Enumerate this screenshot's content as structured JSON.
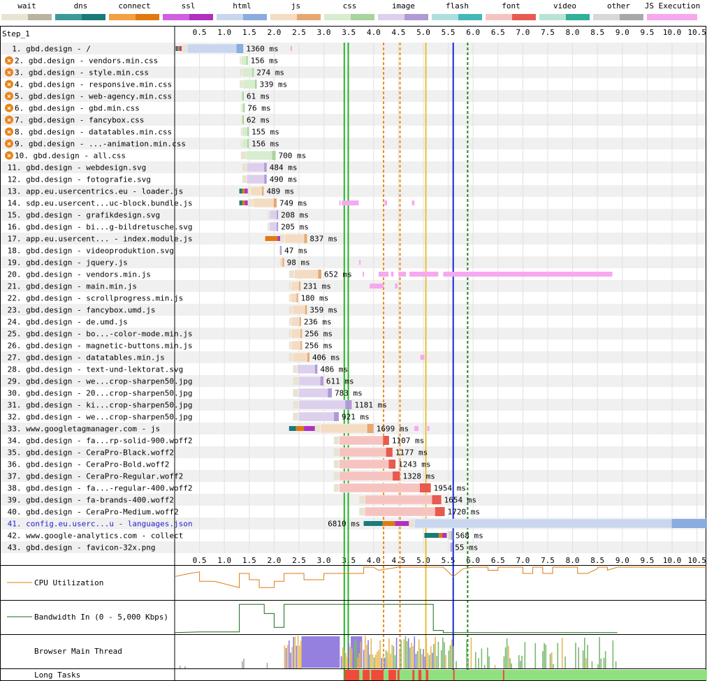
{
  "legend": [
    {
      "label": "wait",
      "colors": [
        "#e8e4d2",
        "#b8b4a0"
      ]
    },
    {
      "label": "dns",
      "colors": [
        "#3a9a9a",
        "#1a7a7a"
      ]
    },
    {
      "label": "connect",
      "colors": [
        "#f2a040",
        "#e07a10"
      ]
    },
    {
      "label": "ssl",
      "colors": [
        "#d060e0",
        "#b030c0"
      ]
    },
    {
      "label": "html",
      "colors": [
        "#c8d6ee",
        "#8aacdf"
      ]
    },
    {
      "label": "js",
      "colors": [
        "#f4dcc4",
        "#e6a870"
      ]
    },
    {
      "label": "css",
      "colors": [
        "#d8ecd0",
        "#a8d49a"
      ]
    },
    {
      "label": "image",
      "colors": [
        "#dcd0ec",
        "#b09ad6"
      ]
    },
    {
      "label": "flash",
      "colors": [
        "#b0dede",
        "#44b8b8"
      ]
    },
    {
      "label": "font",
      "colors": [
        "#f6c4c0",
        "#e85a50"
      ]
    },
    {
      "label": "video",
      "colors": [
        "#b8e4d4",
        "#30b098"
      ]
    },
    {
      "label": "other",
      "colors": [
        "#d8d8d8",
        "#a8a8a8"
      ]
    },
    {
      "label": "JS Execution",
      "colors": [
        "#f6a8f0",
        "#f6a8f0"
      ]
    }
  ],
  "chart_data": {
    "type": "table",
    "title": "Step_1",
    "x_axis_ticks": [
      "0.5",
      "1.0",
      "1.5",
      "2.0",
      "2.5",
      "3.0",
      "3.5",
      "4.0",
      "4.5",
      "5.0",
      "5.5",
      "6.0",
      "6.5",
      "7.0",
      "7.5",
      "8.0",
      "8.5",
      "9.0",
      "9.5",
      "10.0",
      "10.5"
    ],
    "xlim": [
      0,
      10.7
    ],
    "markers": [
      {
        "t": 3.41,
        "color": "#28b428",
        "style": "solid"
      },
      {
        "t": 3.49,
        "color": "#28b428",
        "style": "solid"
      },
      {
        "t": 4.2,
        "color": "#f08c14",
        "style": "dashed"
      },
      {
        "t": 4.53,
        "color": "#f08c14",
        "style": "dashed"
      },
      {
        "t": 5.05,
        "color": "#e8c030",
        "style": "solid"
      },
      {
        "t": 5.6,
        "color": "#1428d8",
        "style": "solid"
      },
      {
        "t": 5.89,
        "color": "#208c20",
        "style": "dashed"
      }
    ],
    "requests": [
      {
        "n": "1.",
        "label": "gbd.design - /",
        "start": 0.02,
        "end": 1.38,
        "type": "html",
        "warn": false,
        "link": false,
        "ms": "1360 ms",
        "pre": [
          [
            "dns",
            0.02,
            0.06
          ],
          [
            "connect",
            0.06,
            0.1
          ],
          [
            "ssl",
            0.1,
            0.14
          ]
        ],
        "js": [
          [
            2.33,
            2.36
          ]
        ]
      },
      {
        "n": "2.",
        "label": "gbd.design - vendors.min.css",
        "start": 1.31,
        "end": 1.47,
        "type": "css",
        "warn": true,
        "link": false,
        "ms": "156 ms",
        "pre": [],
        "js": []
      },
      {
        "n": "3.",
        "label": "gbd.design - style.min.css",
        "start": 1.31,
        "end": 1.59,
        "type": "css",
        "warn": true,
        "link": false,
        "ms": "274 ms",
        "pre": [],
        "js": []
      },
      {
        "n": "4.",
        "label": "gbd.design - responsive.min.css",
        "start": 1.31,
        "end": 1.65,
        "type": "css",
        "warn": true,
        "link": false,
        "ms": "339 ms",
        "pre": [],
        "js": []
      },
      {
        "n": "5.",
        "label": "gbd.design - web-agency.min.css",
        "start": 1.33,
        "end": 1.39,
        "type": "css",
        "warn": true,
        "link": false,
        "ms": "61 ms",
        "pre": [],
        "js": []
      },
      {
        "n": "6.",
        "label": "gbd.design - gbd.min.css",
        "start": 1.33,
        "end": 1.41,
        "type": "css",
        "warn": true,
        "link": false,
        "ms": "76 ms",
        "pre": [],
        "js": []
      },
      {
        "n": "7.",
        "label": "gbd.design - fancybox.css",
        "start": 1.33,
        "end": 1.39,
        "type": "css",
        "warn": true,
        "link": false,
        "ms": "62 ms",
        "pre": [],
        "js": []
      },
      {
        "n": "8.",
        "label": "gbd.design - datatables.min.css",
        "start": 1.33,
        "end": 1.49,
        "type": "css",
        "warn": true,
        "link": false,
        "ms": "155 ms",
        "pre": [],
        "js": []
      },
      {
        "n": "9.",
        "label": "gbd.design - ...-animation.min.css",
        "start": 1.33,
        "end": 1.49,
        "type": "css",
        "warn": true,
        "link": false,
        "ms": "156 ms",
        "pre": [],
        "js": []
      },
      {
        "n": "10.",
        "label": "gbd.design - all.css",
        "start": 1.33,
        "end": 2.03,
        "type": "css",
        "warn": true,
        "link": false,
        "ms": "700 ms",
        "pre": [],
        "js": []
      },
      {
        "n": "11.",
        "label": "gbd.design - webdesign.svg",
        "start": 1.36,
        "end": 1.85,
        "type": "image",
        "warn": false,
        "link": false,
        "ms": "484 ms",
        "pre": [],
        "js": []
      },
      {
        "n": "12.",
        "label": "gbd.design - fotografie.svg",
        "start": 1.36,
        "end": 1.85,
        "type": "image",
        "warn": false,
        "link": false,
        "ms": "490 ms",
        "pre": [],
        "js": []
      },
      {
        "n": "13.",
        "label": "app.eu.usercentrics.eu - loader.js",
        "start": 1.3,
        "end": 1.79,
        "type": "js",
        "warn": false,
        "link": false,
        "ms": "489 ms",
        "pre": [
          [
            "dns",
            1.3,
            1.36
          ],
          [
            "connect",
            1.36,
            1.41
          ],
          [
            "ssl",
            1.41,
            1.47
          ]
        ],
        "js": []
      },
      {
        "n": "14.",
        "label": "sdp.eu.usercent...uc-block.bundle.js",
        "start": 1.3,
        "end": 2.05,
        "type": "js",
        "warn": false,
        "link": false,
        "ms": "749 ms",
        "pre": [
          [
            "dns",
            1.3,
            1.36
          ],
          [
            "connect",
            1.36,
            1.41
          ],
          [
            "ssl",
            1.41,
            1.47
          ]
        ],
        "js": [
          [
            3.31,
            3.33
          ],
          [
            3.36,
            3.7
          ],
          [
            4.22,
            4.27
          ],
          [
            4.77,
            4.82
          ]
        ]
      },
      {
        "n": "15.",
        "label": "gbd.design - grafikdesign.svg",
        "start": 1.87,
        "end": 2.08,
        "type": "image",
        "warn": false,
        "link": false,
        "ms": "208 ms",
        "pre": [],
        "js": []
      },
      {
        "n": "16.",
        "label": "gbd.design - bi...g-bildretusche.svg",
        "start": 1.87,
        "end": 2.08,
        "type": "image",
        "warn": false,
        "link": false,
        "ms": "205 ms",
        "pre": [],
        "js": []
      },
      {
        "n": "17.",
        "label": "app.eu.usercent... - index.module.js",
        "start": 1.82,
        "end": 2.66,
        "type": "js",
        "warn": false,
        "link": false,
        "ms": "837 ms",
        "pre": [
          [
            "connect",
            1.82,
            2.07
          ],
          [
            "ssl",
            2.07,
            2.12
          ]
        ],
        "js": []
      },
      {
        "n": "18.",
        "label": "gbd.design - videoproduktion.svg",
        "start": 2.1,
        "end": 2.15,
        "type": "image",
        "warn": false,
        "link": false,
        "ms": "47 ms",
        "pre": [],
        "js": []
      },
      {
        "n": "19.",
        "label": "gbd.design - jquery.js",
        "start": 2.1,
        "end": 2.2,
        "type": "js",
        "warn": false,
        "link": false,
        "ms": "98 ms",
        "pre": [],
        "js": [
          [
            3.71,
            3.73
          ]
        ]
      },
      {
        "n": "20.",
        "label": "gbd.design - vendors.min.js",
        "start": 2.3,
        "end": 2.95,
        "type": "js",
        "warn": false,
        "link": false,
        "ms": "652 ms",
        "pre": [],
        "js": [
          [
            3.78,
            3.8
          ],
          [
            4.1,
            4.3
          ],
          [
            4.35,
            4.4
          ],
          [
            4.5,
            4.65
          ],
          [
            4.72,
            5.3
          ],
          [
            5.4,
            6.5
          ],
          [
            6.5,
            8.8
          ]
        ]
      },
      {
        "n": "21.",
        "label": "gbd.design - main.min.js",
        "start": 2.3,
        "end": 2.53,
        "type": "js",
        "warn": false,
        "link": false,
        "ms": "231 ms",
        "pre": [],
        "js": [
          [
            3.92,
            4.2
          ],
          [
            4.43,
            4.48
          ]
        ]
      },
      {
        "n": "22.",
        "label": "gbd.design - scrollprogress.min.js",
        "start": 2.3,
        "end": 2.48,
        "type": "js",
        "warn": false,
        "link": false,
        "ms": "180 ms",
        "pre": [],
        "js": []
      },
      {
        "n": "23.",
        "label": "gbd.design - fancybox.umd.js",
        "start": 2.3,
        "end": 2.66,
        "type": "js",
        "warn": false,
        "link": false,
        "ms": "359 ms",
        "pre": [],
        "js": []
      },
      {
        "n": "24.",
        "label": "gbd.design - de.umd.js",
        "start": 2.3,
        "end": 2.54,
        "type": "js",
        "warn": false,
        "link": false,
        "ms": "236 ms",
        "pre": [],
        "js": []
      },
      {
        "n": "25.",
        "label": "gbd.design - bo...-color-mode.min.js",
        "start": 2.3,
        "end": 2.56,
        "type": "js",
        "warn": false,
        "link": false,
        "ms": "256 ms",
        "pre": [],
        "js": []
      },
      {
        "n": "26.",
        "label": "gbd.design - magnetic-buttons.min.js",
        "start": 2.3,
        "end": 2.56,
        "type": "js",
        "warn": false,
        "link": false,
        "ms": "256 ms",
        "pre": [],
        "js": []
      },
      {
        "n": "27.",
        "label": "gbd.design - datatables.min.js",
        "start": 2.3,
        "end": 2.71,
        "type": "js",
        "warn": false,
        "link": false,
        "ms": "406 ms",
        "pre": [],
        "js": [
          [
            4.94,
            5.02
          ]
        ]
      },
      {
        "n": "28.",
        "label": "gbd.design - text-und-lektorat.svg",
        "start": 2.38,
        "end": 2.87,
        "type": "image",
        "warn": false,
        "link": false,
        "ms": "486 ms",
        "pre": [],
        "js": []
      },
      {
        "n": "29.",
        "label": "gbd.design - we...crop-sharpen50.jpg",
        "start": 2.38,
        "end": 2.99,
        "type": "image",
        "warn": false,
        "link": false,
        "ms": "611 ms",
        "pre": [],
        "js": []
      },
      {
        "n": "30.",
        "label": "gbd.design - 20...crop-sharpen50.jpg",
        "start": 2.38,
        "end": 3.16,
        "type": "image",
        "warn": false,
        "link": false,
        "ms": "783 ms",
        "pre": [],
        "js": []
      },
      {
        "n": "31.",
        "label": "gbd.design - ki...crop-sharpen50.jpg",
        "start": 2.38,
        "end": 3.56,
        "type": "image",
        "warn": false,
        "link": false,
        "ms": "1181 ms",
        "pre": [],
        "js": []
      },
      {
        "n": "32.",
        "label": "gbd.design - we...crop-sharpen50.jpg",
        "start": 2.38,
        "end": 3.3,
        "type": "image",
        "warn": false,
        "link": false,
        "ms": "921 ms",
        "pre": [],
        "js": []
      },
      {
        "n": "33.",
        "label": "www.googletagmanager.com - js",
        "start": 2.3,
        "end": 4.0,
        "type": "js",
        "warn": false,
        "link": false,
        "ms": "1699 ms",
        "pre": [
          [
            "dns",
            2.3,
            2.44
          ],
          [
            "connect",
            2.44,
            2.6
          ],
          [
            "ssl",
            2.6,
            2.82
          ]
        ],
        "js": [
          [
            4.82,
            4.9
          ],
          [
            5.08,
            5.12
          ]
        ]
      },
      {
        "n": "34.",
        "label": "gbd.design - fa...rp-solid-900.woff2",
        "start": 3.2,
        "end": 4.31,
        "type": "font",
        "warn": false,
        "link": false,
        "ms": "1107 ms",
        "pre": [],
        "js": []
      },
      {
        "n": "35.",
        "label": "gbd.design - CeraPro-Black.woff2",
        "start": 3.2,
        "end": 4.38,
        "type": "font",
        "warn": false,
        "link": false,
        "ms": "1177 ms",
        "pre": [],
        "js": []
      },
      {
        "n": "36.",
        "label": "gbd.design - CeraPro-Bold.woff2",
        "start": 3.2,
        "end": 4.44,
        "type": "font",
        "warn": false,
        "link": false,
        "ms": "1243 ms",
        "pre": [],
        "js": []
      },
      {
        "n": "37.",
        "label": "gbd.design - CeraPro-Regular.woff2",
        "start": 3.2,
        "end": 4.53,
        "type": "font",
        "warn": false,
        "link": false,
        "ms": "1328 ms",
        "pre": [],
        "js": []
      },
      {
        "n": "38.",
        "label": "gbd.design - fa...-regular-400.woff2",
        "start": 3.2,
        "end": 5.15,
        "type": "font",
        "warn": false,
        "link": false,
        "ms": "1954 ms",
        "pre": [],
        "js": []
      },
      {
        "n": "39.",
        "label": "gbd.design - fa-brands-400.woff2",
        "start": 3.71,
        "end": 5.36,
        "type": "font",
        "warn": false,
        "link": false,
        "ms": "1654 ms",
        "pre": [],
        "js": []
      },
      {
        "n": "40.",
        "label": "gbd.design - CeraPro-Medium.woff2",
        "start": 3.71,
        "end": 5.43,
        "type": "font",
        "warn": false,
        "link": false,
        "ms": "1720 ms",
        "pre": [],
        "js": []
      },
      {
        "n": "41.",
        "label": "config.eu.userc...u - languages.json",
        "start": 3.8,
        "end": 10.7,
        "type": "html",
        "warn": false,
        "link": true,
        "ms": "6810 ms",
        "pre": [
          [
            "dns",
            3.8,
            4.18
          ],
          [
            "connect",
            4.18,
            4.43
          ],
          [
            "ssl",
            4.43,
            4.71
          ]
        ],
        "js": [],
        "ms_left": true
      },
      {
        "n": "42.",
        "label": "www.google-analytics.com - collect",
        "start": 5.02,
        "end": 5.59,
        "type": "other",
        "warn": false,
        "link": false,
        "ms": "568 ms",
        "pre": [
          [
            "dns",
            5.02,
            5.31
          ],
          [
            "connect",
            5.31,
            5.38
          ],
          [
            "ssl",
            5.38,
            5.47
          ]
        ],
        "js": []
      },
      {
        "n": "43.",
        "label": "gbd.design - favicon-32x.png",
        "start": 5.52,
        "end": 5.58,
        "type": "image",
        "warn": false,
        "link": false,
        "ms": "55 ms",
        "pre": [],
        "js": []
      }
    ],
    "cpu_utilization": [
      [
        0,
        70
      ],
      [
        0.3,
        80
      ],
      [
        0.5,
        85
      ],
      [
        0.5,
        55
      ],
      [
        0.8,
        55
      ],
      [
        1.3,
        35
      ],
      [
        1.3,
        80
      ],
      [
        1.5,
        80
      ],
      [
        1.5,
        60
      ],
      [
        1.7,
        60
      ],
      [
        1.7,
        35
      ],
      [
        2.0,
        35
      ],
      [
        2.0,
        55
      ],
      [
        2.2,
        55
      ],
      [
        2.2,
        80
      ],
      [
        2.6,
        80
      ],
      [
        2.6,
        60
      ],
      [
        3.0,
        60
      ],
      [
        3.0,
        80
      ],
      [
        3.8,
        80
      ],
      [
        3.8,
        100
      ],
      [
        4.0,
        100
      ],
      [
        4.1,
        90
      ],
      [
        4.5,
        100
      ],
      [
        5.2,
        100
      ],
      [
        5.4,
        100
      ],
      [
        5.6,
        70
      ],
      [
        5.8,
        95
      ],
      [
        6.0,
        100
      ],
      [
        6.3,
        100
      ],
      [
        6.3,
        90
      ],
      [
        6.5,
        90
      ],
      [
        6.5,
        100
      ],
      [
        7.0,
        100
      ],
      [
        7.0,
        80
      ],
      [
        7.2,
        80
      ],
      [
        7.2,
        100
      ],
      [
        7.4,
        100
      ],
      [
        7.4,
        80
      ],
      [
        7.6,
        80
      ],
      [
        7.6,
        100
      ],
      [
        8.1,
        100
      ],
      [
        8.1,
        80
      ],
      [
        8.3,
        80
      ],
      [
        8.5,
        95
      ],
      [
        8.5,
        100
      ],
      [
        8.7,
        100
      ],
      [
        8.7,
        90
      ],
      [
        8.9,
        100
      ],
      [
        10.7,
        100
      ]
    ],
    "bandwidth_in": [
      [
        0,
        3
      ],
      [
        0.5,
        5
      ],
      [
        1.3,
        5
      ],
      [
        1.3,
        95
      ],
      [
        1.8,
        95
      ],
      [
        1.8,
        65
      ],
      [
        2.0,
        65
      ],
      [
        2.0,
        20
      ],
      [
        2.2,
        20
      ],
      [
        2.2,
        95
      ],
      [
        5.2,
        95
      ],
      [
        5.2,
        10
      ],
      [
        5.4,
        10
      ],
      [
        5.4,
        3
      ],
      [
        8.9,
        3
      ]
    ],
    "long_tasks": [
      [
        3.42,
        3.71
      ],
      [
        3.78,
        3.92
      ],
      [
        3.95,
        4.2
      ],
      [
        4.3,
        4.45
      ],
      [
        4.48,
        4.52
      ],
      [
        4.78,
        4.82
      ],
      [
        4.9,
        4.96
      ],
      [
        5.05,
        5.1
      ],
      [
        5.6,
        5.62
      ],
      [
        6.6,
        6.62
      ]
    ],
    "panels": {
      "cpu_label": "CPU Utilization",
      "bw_label": "Bandwidth In (0 - 5,000 Kbps)",
      "main_label": "Browser Main Thread",
      "long_label": "Long Tasks"
    }
  }
}
